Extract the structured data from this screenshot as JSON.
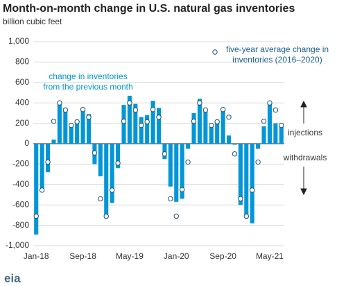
{
  "chart_data": {
    "type": "bar",
    "title": "Month-on-month change in U.S. natural gas inventories",
    "subtitle": "billion cubic feet",
    "categories": [
      "Jan-18",
      null,
      null,
      null,
      null,
      null,
      null,
      null,
      "Sep-18",
      null,
      null,
      null,
      null,
      null,
      null,
      null,
      "May-19",
      null,
      null,
      null,
      null,
      null,
      null,
      null,
      "Jan-20",
      null,
      null,
      null,
      null,
      null,
      null,
      null,
      "Sep-20",
      null,
      null,
      null,
      null,
      null,
      null,
      null,
      "May-21",
      null,
      null
    ],
    "series": [
      {
        "name": "change in inventories from the previous month",
        "color": "#0096d7",
        "values": [
          -890,
          -460,
          -280,
          40,
          410,
          350,
          180,
          200,
          340,
          290,
          -200,
          -320,
          -730,
          -580,
          -240,
          380,
          470,
          390,
          260,
          280,
          420,
          350,
          -150,
          -420,
          -570,
          -540,
          -50,
          300,
          440,
          340,
          170,
          200,
          330,
          80,
          -10,
          -600,
          -730,
          -780,
          -50,
          170,
          400,
          200,
          190
        ]
      },
      {
        "name": "five-year average change in inventories (2016–2020)",
        "color": "#ffffff",
        "marker": "circle",
        "values": [
          -710,
          -455,
          -180,
          220,
          400,
          330,
          180,
          215,
          335,
          260,
          -90,
          -540,
          -710,
          -455,
          -190,
          220,
          400,
          330,
          180,
          215,
          335,
          260,
          -100,
          -540,
          -710,
          -450,
          -180,
          220,
          400,
          330,
          180,
          215,
          335,
          260,
          -100,
          -540,
          -710,
          -455,
          -180,
          220,
          400,
          330,
          180
        ]
      }
    ],
    "ylim": [
      -1000,
      1000
    ],
    "yticks": [
      {
        "value": -1000,
        "label": "-1,000"
      },
      -800,
      -600,
      -400,
      -200,
      0,
      200,
      400,
      600,
      800,
      {
        "value": 1000,
        "label": "1,000"
      }
    ],
    "grid": true,
    "annotations": [
      "injections",
      "withdrawals"
    ],
    "logo": "eia"
  }
}
